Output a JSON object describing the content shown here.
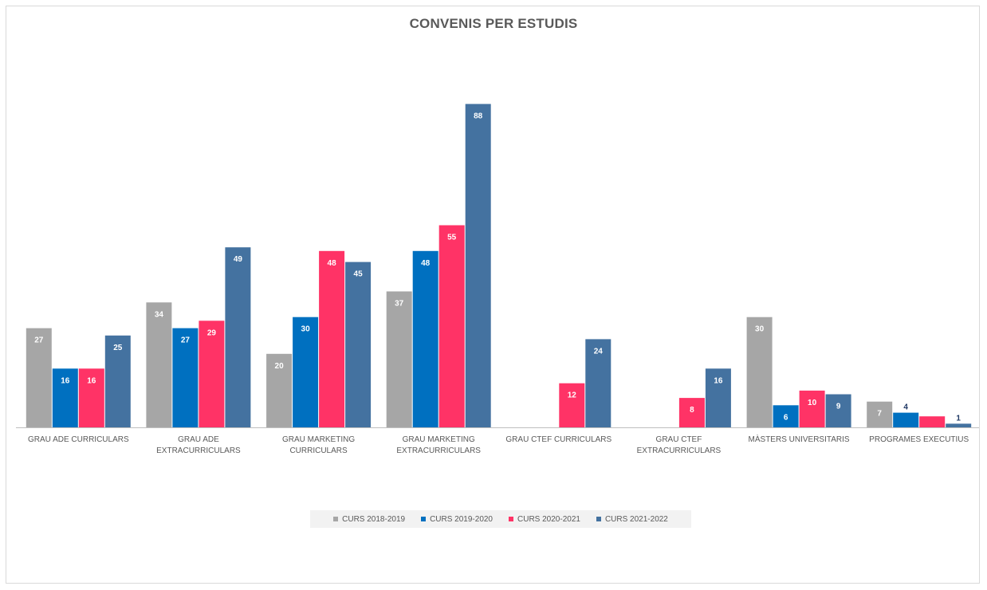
{
  "chart_data": {
    "type": "bar",
    "title": "CONVENIS PER ESTUDIS",
    "categories": [
      [
        "GRAU ADE CURRICULARS"
      ],
      [
        "GRAU ADE",
        "EXTRACURRICULARS"
      ],
      [
        "GRAU MARKETING",
        "CURRICULARS"
      ],
      [
        "GRAU MARKETING",
        "EXTRACURRICULARS"
      ],
      [
        "GRAU CTEF CURRICULARS"
      ],
      [
        "GRAU CTEF",
        "EXTRACURRICULARS"
      ],
      [
        "MÀSTERS UNIVERSITARIS"
      ],
      [
        "PROGRAMES EXECUTIUS"
      ]
    ],
    "series": [
      {
        "name": "CURS 2018-2019",
        "color": "#a6a6a6",
        "values": [
          27,
          34,
          20,
          37,
          null,
          null,
          30,
          7
        ]
      },
      {
        "name": "CURS 2019-2020",
        "color": "#0070c0",
        "values": [
          16,
          27,
          30,
          48,
          null,
          null,
          6,
          4
        ]
      },
      {
        "name": "CURS 2020-2021",
        "color": "#ff3366",
        "values": [
          16,
          29,
          48,
          55,
          12,
          8,
          10,
          3
        ]
      },
      {
        "name": "CURS 2021-2022",
        "color": "#4472a0",
        "values": [
          25,
          49,
          45,
          88,
          24,
          16,
          9,
          1
        ]
      }
    ],
    "value_labels": [
      [
        "27",
        "16",
        "16",
        "25"
      ],
      [
        "34",
        "27",
        "29",
        "49"
      ],
      [
        "20",
        "30",
        "48",
        "45"
      ],
      [
        "37",
        "48",
        "55",
        "88"
      ],
      [
        "",
        "",
        "12",
        "24"
      ],
      [
        "",
        "",
        "8",
        "16"
      ],
      [
        "30",
        "6",
        "10",
        "9"
      ],
      [
        "7",
        "4",
        "",
        "1"
      ]
    ],
    "ylim": [
      0,
      92
    ],
    "xlabel": "",
    "ylabel": "",
    "grid": false,
    "legend_position": "bottom"
  }
}
